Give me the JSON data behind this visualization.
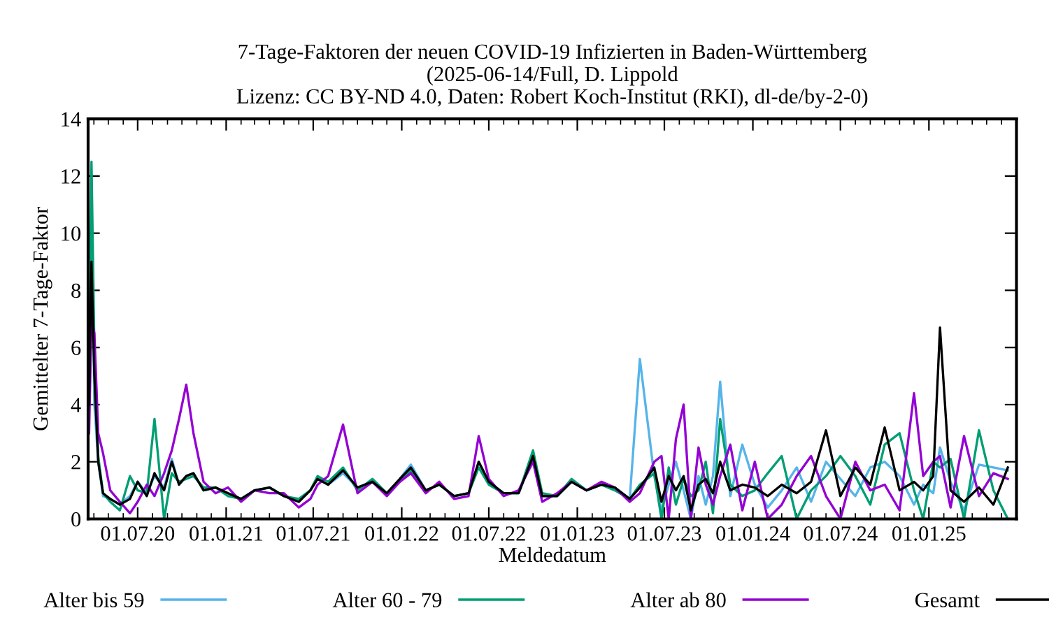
{
  "chart_data": {
    "type": "line",
    "title": "7-Tage-Faktoren der neuen COVID-19 Infizierten in Baden-Württemberg\n(2025-06-14/Full, D. Lippold\nLizenz: CC BY-ND 4.0, Daten: Robert Koch-Institut (RKI), dl-de/by-2-0)",
    "xlabel": "Meldedatum",
    "ylabel": "Gemittelter 7-Tage-Faktor",
    "x": [
      "2020-03-22",
      "2020-03-27",
      "2020-04-02",
      "2020-04-10",
      "2020-04-20",
      "2020-05-05",
      "2020-05-25",
      "2020-06-15",
      "2020-07-01",
      "2020-07-20",
      "2020-08-05",
      "2020-08-25",
      "2020-09-10",
      "2020-09-25",
      "2020-10-10",
      "2020-10-25",
      "2020-11-15",
      "2020-12-10",
      "2021-01-05",
      "2021-02-01",
      "2021-03-01",
      "2021-04-01",
      "2021-05-01",
      "2021-06-01",
      "2021-06-25",
      "2021-07-10",
      "2021-08-01",
      "2021-09-01",
      "2021-10-01",
      "2021-11-01",
      "2021-12-01",
      "2021-12-28",
      "2022-01-20",
      "2022-02-20",
      "2022-03-20",
      "2022-04-20",
      "2022-05-20",
      "2022-06-10",
      "2022-07-01",
      "2022-08-01",
      "2022-09-01",
      "2022-10-01",
      "2022-10-20",
      "2022-11-20",
      "2022-12-20",
      "2023-01-20",
      "2023-02-20",
      "2023-03-20",
      "2023-04-20",
      "2023-05-11",
      "2023-06-10",
      "2023-06-25",
      "2023-07-10",
      "2023-07-25",
      "2023-08-10",
      "2023-08-25",
      "2023-09-10",
      "2023-09-25",
      "2023-10-10",
      "2023-10-25",
      "2023-11-15",
      "2023-12-10",
      "2024-01-05",
      "2024-02-01",
      "2024-03-01",
      "2024-04-01",
      "2024-05-01",
      "2024-06-01",
      "2024-07-01",
      "2024-08-01",
      "2024-09-01",
      "2024-10-01",
      "2024-11-01",
      "2024-12-01",
      "2024-12-20",
      "2025-01-10",
      "2025-01-24",
      "2025-02-15",
      "2025-03-15",
      "2025-04-15",
      "2025-05-15",
      "2025-06-14"
    ],
    "series": [
      {
        "name": "Alter bis 59",
        "color": "#56b4e9",
        "values": [
          5.5,
          10.5,
          4,
          2,
          0.8,
          0.7,
          0.5,
          0.8,
          1.3,
          0.9,
          1.5,
          1.1,
          2.1,
          1.2,
          1.5,
          1.6,
          1.0,
          1.1,
          0.9,
          0.7,
          1.0,
          1.1,
          0.8,
          0.6,
          1.0,
          1.4,
          1.2,
          1.6,
          1.1,
          1.3,
          0.9,
          1.4,
          1.9,
          1.0,
          1.2,
          0.8,
          0.9,
          2.0,
          1.3,
          0.9,
          0.9,
          2.2,
          0.8,
          0.8,
          1.3,
          1.0,
          1.2,
          1.1,
          0.7,
          5.6,
          1.5,
          0.3,
          1.2,
          2.0,
          1.0,
          0,
          1.5,
          0.5,
          1.5,
          4.8,
          0.8,
          2.6,
          1.2,
          0.4,
          1.0,
          1.8,
          0.6,
          2.0,
          1.4,
          0.8,
          1.8,
          2.0,
          1.5,
          0.5,
          1.2,
          0.9,
          2.5,
          1.3,
          0.3,
          1.9,
          1.8,
          1.7
        ]
      },
      {
        "name": "Alter 60 - 79",
        "color": "#009e73",
        "values": [
          4.5,
          12.5,
          6,
          2.2,
          0.9,
          0.6,
          0.3,
          1.5,
          1.0,
          0.9,
          3.5,
          0,
          1.6,
          1.3,
          1.4,
          1.5,
          1.1,
          1.1,
          0.8,
          0.7,
          1.0,
          1.1,
          0.8,
          0.7,
          1.0,
          1.5,
          1.3,
          1.8,
          1.0,
          1.4,
          0.9,
          1.3,
          1.7,
          1.0,
          1.2,
          0.8,
          0.9,
          1.8,
          1.2,
          0.9,
          0.9,
          2.4,
          0.9,
          0.8,
          1.4,
          1.0,
          1.2,
          1.0,
          0.7,
          1.2,
          1.6,
          0,
          1.8,
          0.5,
          1.4,
          0.8,
          1.0,
          2.0,
          0.2,
          3.5,
          1.2,
          0.8,
          1.0,
          1.6,
          2.2,
          0,
          1.0,
          1.5,
          2.2,
          1.5,
          0.5,
          2.6,
          3.0,
          1.0,
          0,
          2.0,
          1.8,
          2.1,
          0,
          3.1,
          1.0,
          0
        ]
      },
      {
        "name": "Alter ab 80",
        "color": "#9400d3",
        "values": [
          3,
          7,
          6.5,
          3,
          2.3,
          1.0,
          0.6,
          0.2,
          0.6,
          1.2,
          0.8,
          1.6,
          2.4,
          3.5,
          4.7,
          3.0,
          1.3,
          0.9,
          1.1,
          0.6,
          1.0,
          0.9,
          0.9,
          0.4,
          0.7,
          1.2,
          1.5,
          3.3,
          0.9,
          1.3,
          0.8,
          1.3,
          1.6,
          0.9,
          1.3,
          0.7,
          0.8,
          2.9,
          1.4,
          0.8,
          1.0,
          2.0,
          0.6,
          0.9,
          1.3,
          1.0,
          1.3,
          1.1,
          0.6,
          0.9,
          2.0,
          2.2,
          0,
          2.8,
          4.0,
          0,
          2.5,
          1.2,
          0.5,
          1.5,
          2.6,
          0.3,
          2.0,
          0,
          0.5,
          1.5,
          2.2,
          0.8,
          0,
          2.0,
          1.0,
          1.2,
          0.3,
          4.4,
          1.5,
          2.0,
          2.2,
          0.4,
          2.9,
          0.8,
          1.6,
          1.4
        ]
      },
      {
        "name": "Gesamt",
        "color": "#000000",
        "values": [
          4,
          9,
          5,
          2,
          0.9,
          0.7,
          0.5,
          0.7,
          1.3,
          0.8,
          1.6,
          1.0,
          2.0,
          1.2,
          1.5,
          1.6,
          1.0,
          1.1,
          0.9,
          0.7,
          1.0,
          1.1,
          0.8,
          0.6,
          1.0,
          1.4,
          1.2,
          1.7,
          1.1,
          1.3,
          0.9,
          1.4,
          1.8,
          1.0,
          1.2,
          0.8,
          0.9,
          2.0,
          1.3,
          0.9,
          0.9,
          2.2,
          0.8,
          0.8,
          1.3,
          1.0,
          1.2,
          1.1,
          0.7,
          1.1,
          1.8,
          0.6,
          1.5,
          1.0,
          1.5,
          0.3,
          1.2,
          1.4,
          0.9,
          2.0,
          1.0,
          1.2,
          1.1,
          0.8,
          1.2,
          0.9,
          1.3,
          3.1,
          0.8,
          1.8,
          1.2,
          3.2,
          1.0,
          1.3,
          1.0,
          1.5,
          6.7,
          1.0,
          0.6,
          1.1,
          0.5,
          1.8
        ]
      }
    ],
    "xlim": [
      "2020-03-20",
      "2025-07-02"
    ],
    "xticks": [
      {
        "value": "2020-07-01",
        "label": "01.07.20"
      },
      {
        "value": "2021-01-01",
        "label": "01.01.21"
      },
      {
        "value": "2021-07-01",
        "label": "01.07.21"
      },
      {
        "value": "2022-01-01",
        "label": "01.01.22"
      },
      {
        "value": "2022-07-01",
        "label": "01.07.22"
      },
      {
        "value": "2023-01-01",
        "label": "01.01.23"
      },
      {
        "value": "2023-07-01",
        "label": "01.07.23"
      },
      {
        "value": "2024-01-01",
        "label": "01.01.24"
      },
      {
        "value": "2024-07-01",
        "label": "01.07.24"
      },
      {
        "value": "2025-01-01",
        "label": "01.01.25"
      }
    ],
    "ylim": [
      0,
      14
    ],
    "yticks": [
      0,
      2,
      4,
      6,
      8,
      10,
      12,
      14
    ],
    "grid": false,
    "legend": "bottom",
    "marker": "none",
    "line_style": "solid"
  }
}
